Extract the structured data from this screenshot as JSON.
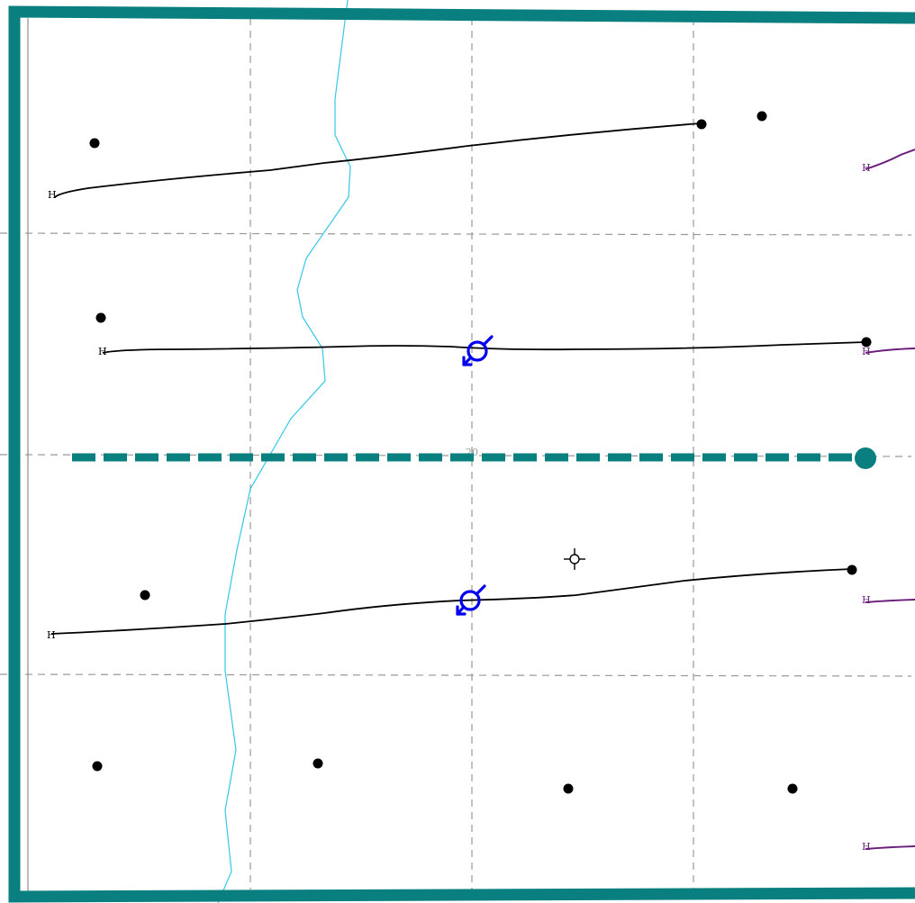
{
  "map": {
    "title": "",
    "grid_label": "20",
    "colors": {
      "frame": "#0a7f7f",
      "grid": "#999999",
      "well_path": "#000000",
      "offset_path": "#6a1f7a",
      "river": "#33c7e8",
      "marker": "#0000ee",
      "section_line": "#0a7f7f"
    }
  },
  "wells": [
    {
      "name": "horizontal-well-1",
      "label": "H",
      "marker": false
    },
    {
      "name": "horizontal-well-2",
      "label": "H",
      "marker": true
    },
    {
      "name": "horizontal-well-3",
      "label": "H",
      "marker": true
    }
  ],
  "offset_wells": [
    {
      "name": "offset-well-1",
      "label": "H"
    },
    {
      "name": "offset-well-2",
      "label": "H"
    },
    {
      "name": "offset-well-3",
      "label": "H"
    },
    {
      "name": "offset-well-4",
      "label": "H"
    }
  ],
  "icons": {
    "well_marker": "rotated-venus-symbol-icon",
    "target": "crosshair-target-icon",
    "surface_location": "filled-dot-icon"
  },
  "surface_location_count": 13
}
